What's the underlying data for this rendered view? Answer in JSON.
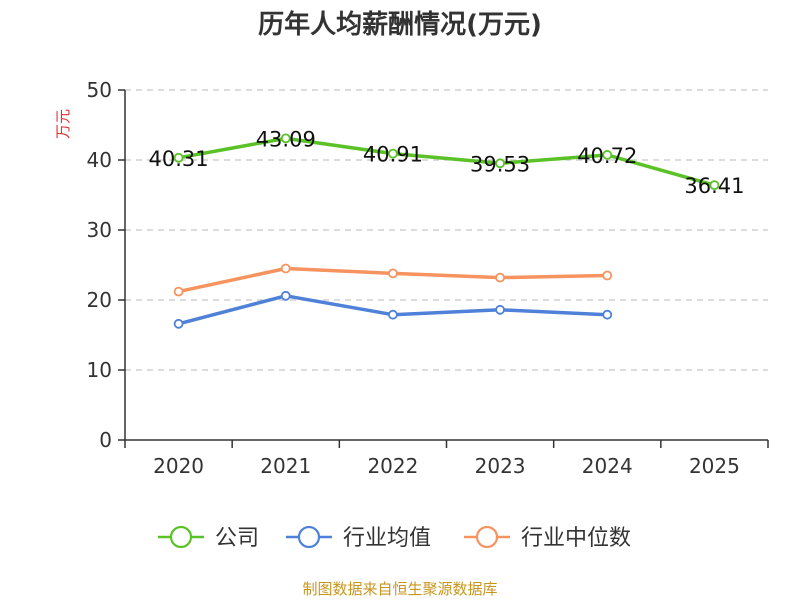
{
  "chart_data": {
    "type": "line",
    "title": "历年人均薪酬情况(万元)",
    "ylabel": "万元",
    "xlabel": "",
    "ylim": [
      0,
      50
    ],
    "yticks": [
      0,
      10,
      20,
      30,
      40,
      50
    ],
    "categories": [
      "2020",
      "2021",
      "2022",
      "2023",
      "2024",
      "2025"
    ],
    "grid": true,
    "legend_position": "bottom",
    "series": [
      {
        "name": "公司",
        "color": "#5ac226",
        "values": [
          40.31,
          43.09,
          40.91,
          39.53,
          40.72,
          36.41
        ],
        "labels": [
          "40.31",
          "43.09",
          "40.91",
          "39.53",
          "40.72",
          "36.41"
        ]
      },
      {
        "name": "行业均值",
        "color": "#4f81d9",
        "values": [
          16.6,
          20.6,
          17.9,
          18.6,
          17.9,
          null
        ]
      },
      {
        "name": "行业中位数",
        "color": "#f7935e",
        "values": [
          21.2,
          24.5,
          23.8,
          23.2,
          23.5,
          null
        ]
      }
    ],
    "source": "制图数据来自恒生聚源数据库"
  }
}
